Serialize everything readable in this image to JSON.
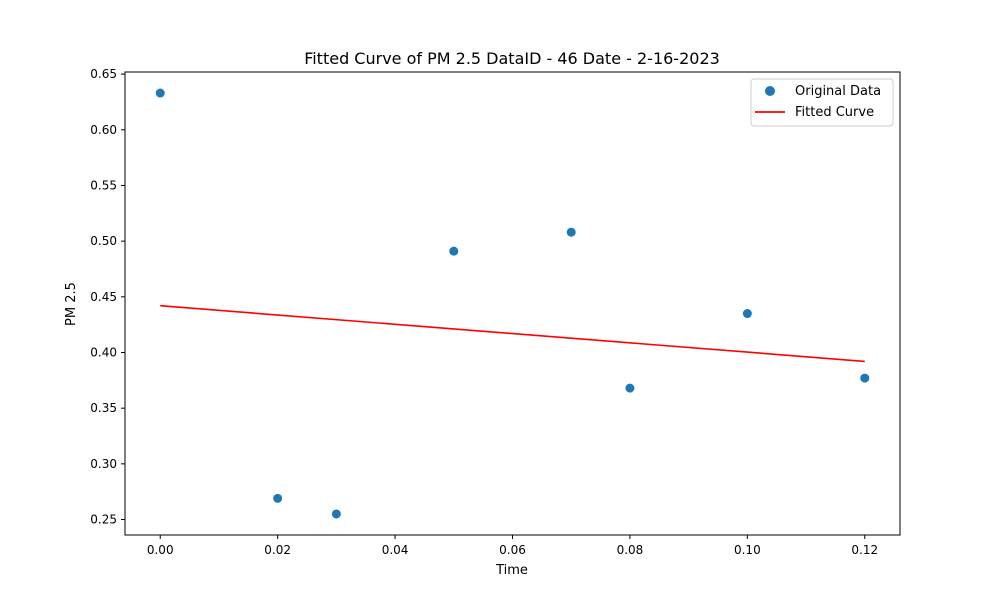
{
  "chart_data": {
    "type": "scatter",
    "title": "Fitted Curve of PM 2.5 DataID - 46 Date - 2-16-2023",
    "xlabel": "Time",
    "ylabel": "PM 2.5",
    "xlim": [
      -0.006,
      0.126
    ],
    "ylim": [
      0.2361,
      0.6519
    ],
    "xticks": [
      0.0,
      0.02,
      0.04,
      0.06,
      0.08,
      0.1,
      0.12
    ],
    "xtick_labels": [
      "0.00",
      "0.02",
      "0.04",
      "0.06",
      "0.08",
      "0.10",
      "0.12"
    ],
    "yticks": [
      0.25,
      0.3,
      0.35,
      0.4,
      0.45,
      0.5,
      0.55,
      0.6,
      0.65
    ],
    "ytick_labels": [
      "0.25",
      "0.30",
      "0.35",
      "0.40",
      "0.45",
      "0.50",
      "0.55",
      "0.60",
      "0.65"
    ],
    "grid": false,
    "legend_position": "top-right",
    "series": [
      {
        "name": "Original Data",
        "kind": "scatter",
        "color": "#1f77b4",
        "x": [
          0.0,
          0.02,
          0.03,
          0.05,
          0.07,
          0.08,
          0.1,
          0.12
        ],
        "y": [
          0.633,
          0.269,
          0.255,
          0.491,
          0.508,
          0.368,
          0.435,
          0.377
        ]
      },
      {
        "name": "Fitted Curve",
        "kind": "line",
        "color": "#ff0000",
        "x": [
          0.0,
          0.12
        ],
        "y": [
          0.442,
          0.392
        ]
      }
    ]
  }
}
